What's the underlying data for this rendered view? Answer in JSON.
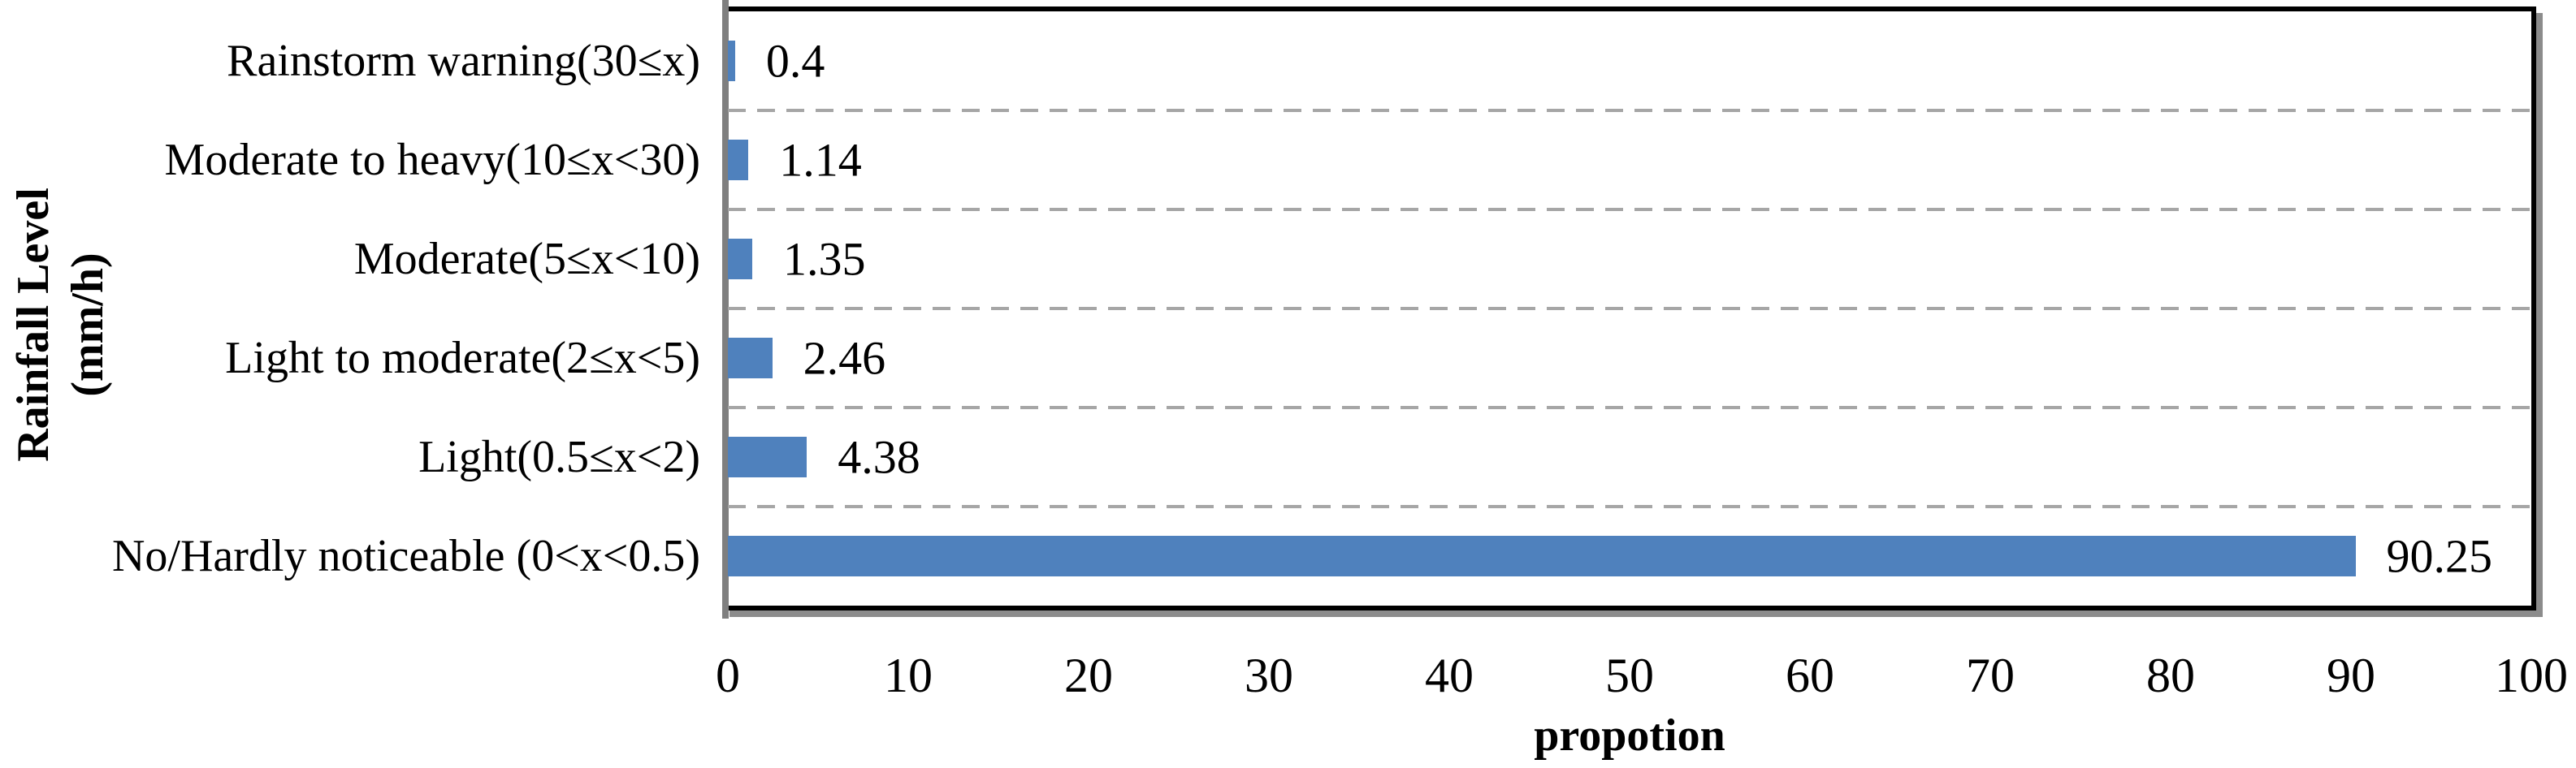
{
  "chart_data": {
    "type": "bar",
    "orientation": "horizontal",
    "categories": [
      "Rainstorm warning(30≤x)",
      "Moderate to heavy(10≤x<30)",
      "Moderate(5≤x<10)",
      "Light to moderate(2≤x<5)",
      "Light(0.5≤x<2)",
      "No/Hardly noticeable (0<x<0.5)"
    ],
    "values": [
      0.4,
      1.14,
      1.35,
      2.46,
      4.38,
      90.25
    ],
    "value_labels": [
      "0.4",
      "1.14",
      "1.35",
      "2.46",
      "4.38",
      "90.25"
    ],
    "xlabel": "propotion",
    "ylabel_line1": "Rainfall Level",
    "ylabel_line2": "(mm/h)",
    "xlim": [
      0,
      100
    ],
    "xticks": [
      "0",
      "10",
      "20",
      "30",
      "40",
      "50",
      "60",
      "70",
      "80",
      "90",
      "100"
    ],
    "grid": "horizontal dashed lines at category boundaries",
    "legend_position": "none",
    "colors": {
      "bar": "#4F81BD",
      "gridline": "#A6A6A6",
      "category_axis_line": "#7F7F7F",
      "plot_border": "#000000",
      "plot_shadow": "#8C8C8C",
      "text": "#000000",
      "background": "#FFFFFF"
    }
  }
}
